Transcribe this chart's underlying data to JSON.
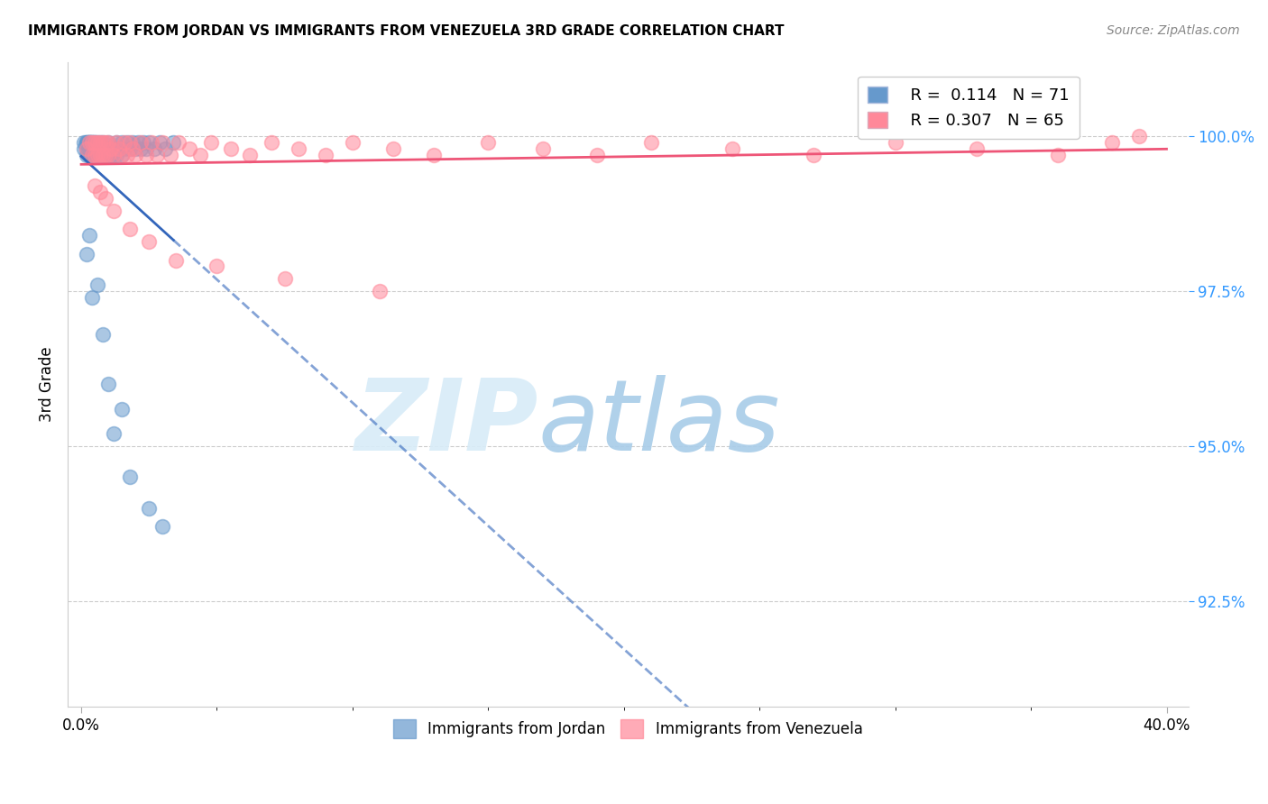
{
  "title": "IMMIGRANTS FROM JORDAN VS IMMIGRANTS FROM VENEZUELA 3RD GRADE CORRELATION CHART",
  "source": "Source: ZipAtlas.com",
  "ylabel": "3rd Grade",
  "ytick_labels": [
    "92.5%",
    "95.0%",
    "97.5%",
    "100.0%"
  ],
  "ytick_values": [
    0.925,
    0.95,
    0.975,
    1.0
  ],
  "jordan_color": "#6699CC",
  "venezuela_color": "#FF8899",
  "jordan_line_color": "#3366BB",
  "venezuela_line_color": "#EE5577",
  "legend_r_jordan": "R =  0.114",
  "legend_n_jordan": "N = 71",
  "legend_r_venezuela": "R = 0.307",
  "legend_n_venezuela": "N = 65",
  "jordan_x": [
    0.001,
    0.001,
    0.002,
    0.002,
    0.002,
    0.002,
    0.002,
    0.003,
    0.003,
    0.003,
    0.003,
    0.003,
    0.003,
    0.004,
    0.004,
    0.004,
    0.004,
    0.004,
    0.005,
    0.005,
    0.005,
    0.005,
    0.006,
    0.006,
    0.006,
    0.006,
    0.007,
    0.007,
    0.007,
    0.008,
    0.008,
    0.008,
    0.009,
    0.009,
    0.01,
    0.01,
    0.01,
    0.011,
    0.011,
    0.012,
    0.012,
    0.013,
    0.013,
    0.014,
    0.015,
    0.015,
    0.016,
    0.017,
    0.018,
    0.019,
    0.02,
    0.021,
    0.022,
    0.023,
    0.024,
    0.025,
    0.027,
    0.029,
    0.031,
    0.034,
    0.002,
    0.003,
    0.004,
    0.006,
    0.008,
    0.01,
    0.012,
    0.015,
    0.018,
    0.025,
    0.03
  ],
  "jordan_y": [
    0.998,
    0.999,
    0.997,
    0.998,
    0.999,
    0.999,
    0.999,
    0.997,
    0.998,
    0.999,
    0.999,
    0.999,
    0.999,
    0.997,
    0.998,
    0.999,
    0.999,
    0.999,
    0.997,
    0.998,
    0.999,
    0.999,
    0.997,
    0.998,
    0.998,
    0.999,
    0.997,
    0.998,
    0.999,
    0.997,
    0.998,
    0.999,
    0.997,
    0.998,
    0.997,
    0.998,
    0.999,
    0.997,
    0.998,
    0.997,
    0.998,
    0.997,
    0.999,
    0.998,
    0.997,
    0.999,
    0.998,
    0.999,
    0.998,
    0.999,
    0.998,
    0.999,
    0.998,
    0.999,
    0.998,
    0.999,
    0.998,
    0.999,
    0.998,
    0.999,
    0.981,
    0.984,
    0.974,
    0.976,
    0.968,
    0.96,
    0.952,
    0.956,
    0.945,
    0.94,
    0.937
  ],
  "venezuela_x": [
    0.002,
    0.003,
    0.004,
    0.004,
    0.005,
    0.005,
    0.006,
    0.006,
    0.007,
    0.007,
    0.008,
    0.008,
    0.009,
    0.009,
    0.01,
    0.01,
    0.011,
    0.012,
    0.013,
    0.014,
    0.015,
    0.016,
    0.017,
    0.018,
    0.019,
    0.02,
    0.022,
    0.024,
    0.026,
    0.028,
    0.03,
    0.033,
    0.036,
    0.04,
    0.044,
    0.048,
    0.055,
    0.062,
    0.07,
    0.08,
    0.09,
    0.1,
    0.115,
    0.13,
    0.15,
    0.17,
    0.19,
    0.21,
    0.24,
    0.27,
    0.3,
    0.33,
    0.36,
    0.38,
    0.39,
    0.005,
    0.007,
    0.009,
    0.012,
    0.018,
    0.025,
    0.035,
    0.05,
    0.075,
    0.11
  ],
  "venezuela_y": [
    0.998,
    0.999,
    0.997,
    0.999,
    0.997,
    0.999,
    0.997,
    0.999,
    0.997,
    0.999,
    0.997,
    0.999,
    0.997,
    0.999,
    0.997,
    0.999,
    0.998,
    0.997,
    0.999,
    0.998,
    0.997,
    0.999,
    0.997,
    0.999,
    0.998,
    0.997,
    0.999,
    0.997,
    0.999,
    0.997,
    0.999,
    0.997,
    0.999,
    0.998,
    0.997,
    0.999,
    0.998,
    0.997,
    0.999,
    0.998,
    0.997,
    0.999,
    0.998,
    0.997,
    0.999,
    0.998,
    0.997,
    0.999,
    0.998,
    0.997,
    0.999,
    0.998,
    0.997,
    0.999,
    1.0,
    0.992,
    0.991,
    0.99,
    0.988,
    0.985,
    0.983,
    0.98,
    0.979,
    0.977,
    0.975
  ]
}
